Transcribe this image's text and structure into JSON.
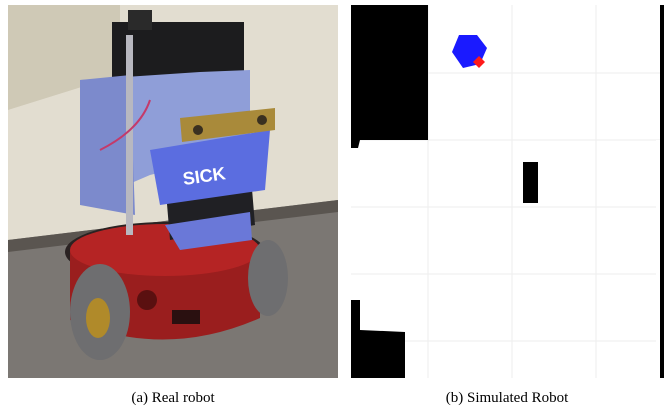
{
  "figure": {
    "panels": [
      {
        "caption": "(a) Real robot",
        "sensor_label": "SICK"
      },
      {
        "caption": "(b) Simulated Robot"
      }
    ]
  }
}
